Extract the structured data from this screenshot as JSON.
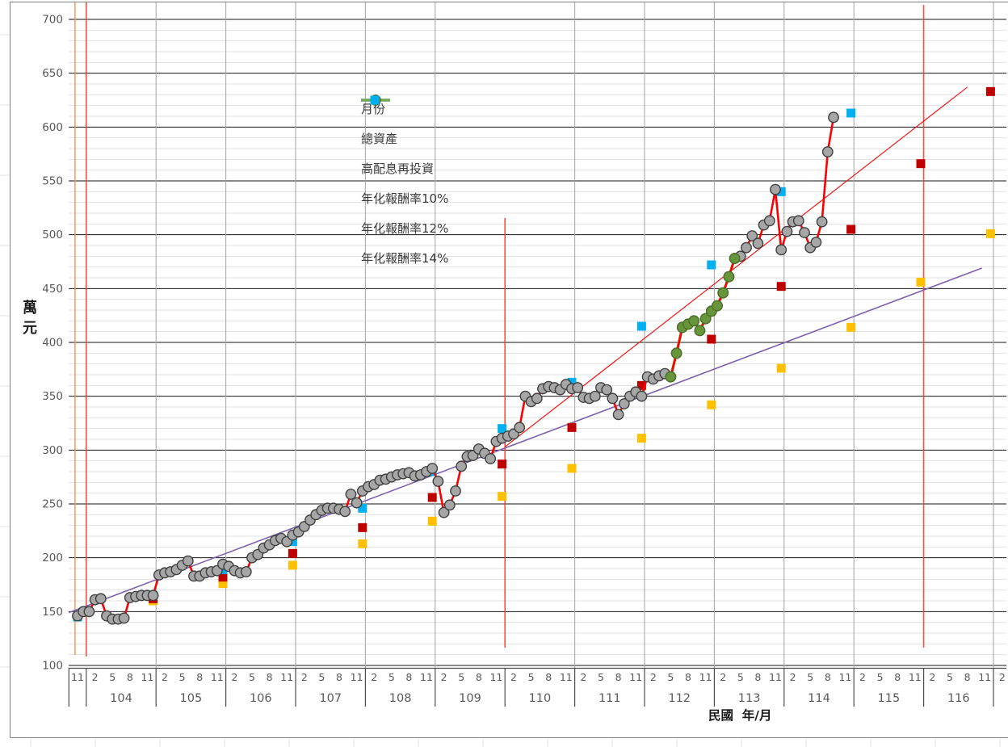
{
  "chart_data": {
    "type": "line",
    "title": "",
    "units": "萬元",
    "y_axis": {
      "title": "萬元",
      "min": 100,
      "max": 700,
      "major_step": 50,
      "minor_step": 10
    },
    "x_axis": {
      "title": "民國  年/月",
      "era_label": "民國",
      "start": "103/11",
      "end": "117/2",
      "month_label_interval": 3,
      "month_label_cycle": [
        "11",
        "2",
        "5",
        "8"
      ],
      "year_labels": [
        104,
        105,
        106,
        107,
        108,
        109,
        110,
        111,
        112,
        113,
        114,
        115,
        116
      ]
    },
    "series": [
      {
        "name": "月份",
        "color": "#4472C4",
        "marker": "diamond",
        "visible_in_plot": false,
        "start": "103/11",
        "monthly_values": []
      },
      {
        "name": "總資產",
        "color": "#FF0000",
        "marker": "circle",
        "marker_fill": "#A6A6A6",
        "marker_stroke": "#404040",
        "start": "103/11",
        "monthly_values": [
          146,
          150,
          150,
          161,
          162,
          146,
          143,
          143,
          144,
          163,
          164,
          165,
          165,
          165,
          184,
          186,
          187,
          189,
          193,
          197,
          183,
          183,
          186,
          187,
          188,
          194,
          192,
          188,
          186,
          187,
          200,
          203,
          209,
          212,
          216,
          218,
          215,
          221,
          224,
          229,
          235,
          240,
          244,
          246,
          246,
          245,
          243,
          259,
          251,
          262,
          266,
          268,
          272,
          273,
          275,
          277,
          278,
          279,
          276,
          277,
          280,
          283,
          271,
          242,
          249,
          262,
          285,
          294,
          295,
          301,
          297,
          292,
          308,
          311,
          313,
          315,
          321,
          350,
          345,
          348,
          357,
          359,
          358,
          356,
          361,
          357,
          358,
          349,
          348,
          350,
          358,
          356,
          348,
          333,
          343,
          350,
          354,
          350,
          368,
          366,
          369,
          371,
          368,
          390,
          414,
          417,
          420,
          411,
          422,
          429,
          434,
          446,
          461,
          478,
          480,
          488,
          499,
          492,
          509,
          513,
          542,
          486,
          503,
          512,
          513,
          502,
          488,
          493,
          512,
          577,
          609
        ]
      },
      {
        "name": "高配息再投資",
        "color": "#70AD47",
        "marker": "circle",
        "marker_fill": "#67953C",
        "marker_stroke": "#4C7226",
        "start": "112/5",
        "monthly_values": [
          368,
          390,
          414,
          417,
          420,
          411,
          422,
          429,
          434,
          446,
          461,
          478
        ]
      }
    ],
    "annual_markers": [
      {
        "name": "年化報酬率10%",
        "color": "#FFC000",
        "placement": "year_end",
        "points": [
          {
            "year": 103,
            "value": 145
          },
          {
            "year": 104,
            "value": 160
          },
          {
            "year": 105,
            "value": 176
          },
          {
            "year": 106,
            "value": 193
          },
          {
            "year": 107,
            "value": 213
          },
          {
            "year": 108,
            "value": 234
          },
          {
            "year": 109,
            "value": 257
          },
          {
            "year": 110,
            "value": 283
          },
          {
            "year": 111,
            "value": 311
          },
          {
            "year": 112,
            "value": 342
          },
          {
            "year": 113,
            "value": 376
          },
          {
            "year": 114,
            "value": 414
          },
          {
            "year": 115,
            "value": 456
          },
          {
            "year": 116,
            "value": 501
          }
        ]
      },
      {
        "name": "年化報酬率12%",
        "color": "#C00000",
        "placement": "year_end",
        "points": [
          {
            "year": 103,
            "value": 145
          },
          {
            "year": 104,
            "value": 162
          },
          {
            "year": 105,
            "value": 182
          },
          {
            "year": 106,
            "value": 204
          },
          {
            "year": 107,
            "value": 228
          },
          {
            "year": 108,
            "value": 256
          },
          {
            "year": 109,
            "value": 287
          },
          {
            "year": 110,
            "value": 321
          },
          {
            "year": 111,
            "value": 360
          },
          {
            "year": 112,
            "value": 403
          },
          {
            "year": 113,
            "value": 452
          },
          {
            "year": 114,
            "value": 505
          },
          {
            "year": 115,
            "value": 566
          },
          {
            "year": 116,
            "value": 633
          }
        ]
      },
      {
        "name": "年化報酬率14%",
        "color": "#00B0F0",
        "placement": "year_end",
        "points": [
          {
            "year": 103,
            "value": 145
          },
          {
            "year": 104,
            "value": 165
          },
          {
            "year": 105,
            "value": 189
          },
          {
            "year": 106,
            "value": 215
          },
          {
            "year": 107,
            "value": 246
          },
          {
            "year": 108,
            "value": 280
          },
          {
            "year": 109,
            "value": 320
          },
          {
            "year": 110,
            "value": 363
          },
          {
            "year": 111,
            "value": 415
          },
          {
            "year": 112,
            "value": 472
          },
          {
            "year": 113,
            "value": 540
          },
          {
            "year": 114,
            "value": 613
          }
        ]
      }
    ],
    "trendlines": [
      {
        "name": "purple-linear-trend",
        "color": "#7D62AD",
        "width": 1.6,
        "from_month": -1.5,
        "from_value": 149,
        "to_month": 155.5,
        "to_value": 469
      },
      {
        "name": "red-projection",
        "color": "#FF0000",
        "width": 1.1,
        "from_month": 73.5,
        "from_value": 303,
        "to_month": 153,
        "to_value": 637
      }
    ],
    "vertical_reference_lines": [
      {
        "at": "103/11",
        "color": "#ED9C55"
      },
      {
        "at": "104/1",
        "color": "#FF3B30"
      },
      {
        "at": "110/1",
        "color": "#FF3B30"
      },
      {
        "at": "116/1",
        "color": "#FF3B30"
      }
    ]
  },
  "legend": {
    "items": [
      {
        "label": "月份",
        "marker": "line-diamond",
        "line_color": "#4472C4",
        "fill": "#4472C4",
        "stroke": "#2F5597"
      },
      {
        "label": "總資產",
        "marker": "line-circle",
        "line_color": "#FF0000",
        "fill": "#A6A6A6",
        "stroke": "#404040"
      },
      {
        "label": "高配息再投資",
        "marker": "line-circle",
        "line_color": "#70AD47",
        "fill": "#67953C",
        "stroke": "#4C7226"
      },
      {
        "label": "年化報酬率10%",
        "marker": "square",
        "fill": "#FFC000"
      },
      {
        "label": "年化報酬率12%",
        "marker": "square",
        "fill": "#C00000"
      },
      {
        "label": "年化報酬率14%",
        "marker": "square",
        "fill": "#00B0F0"
      }
    ]
  }
}
